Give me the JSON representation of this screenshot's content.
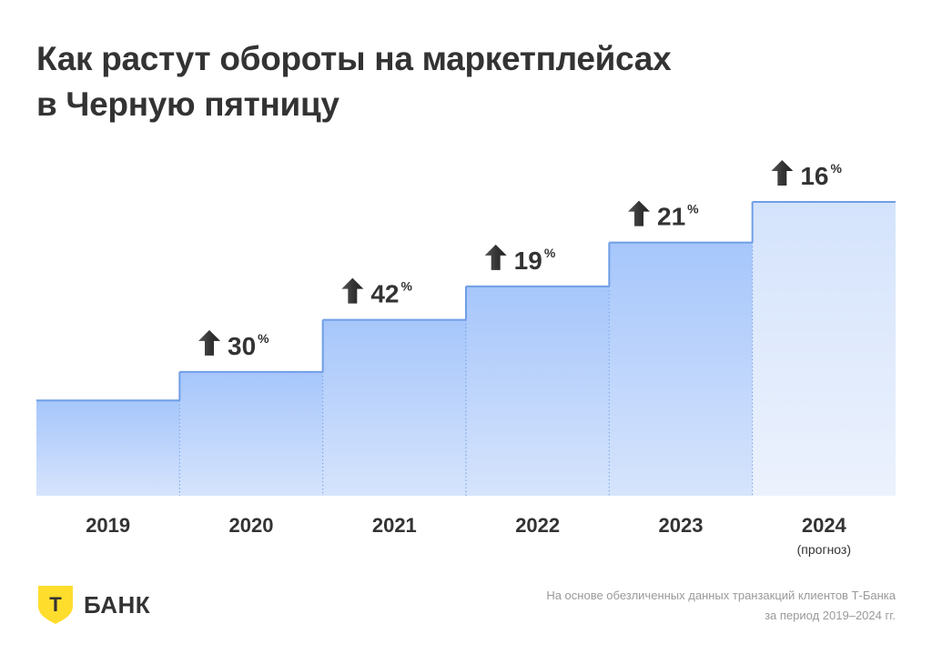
{
  "header": {
    "title_line1": "Как растут обороты на маркетплейсах",
    "title_line2": "в Черную пятницу"
  },
  "chart_data": {
    "type": "bar",
    "categories": [
      "2019",
      "2020",
      "2021",
      "2022",
      "2023",
      "2024"
    ],
    "category_notes": [
      "",
      "",
      "",
      "",
      "",
      "(прогноз)"
    ],
    "growth_labels": [
      "",
      "30",
      "42",
      "19",
      "21",
      "16"
    ],
    "growth_unit": "%",
    "values": [
      100,
      130,
      184.6,
      219.7,
      265.8,
      308.4
    ],
    "forecast_category": "2024",
    "colors": {
      "bar_top": "#a6c6fb",
      "bar_bottom": "#d6e4fc",
      "forecast_top": "#d4e3fc",
      "forecast_bottom": "#ecf2fd",
      "outline": "#6f9ee6",
      "arrow": "#333333"
    }
  },
  "footer": {
    "brand": "БАНК",
    "logo_letter": "Т",
    "logo_color": "#ffdd2d",
    "note_line1": "На основе обезличенных данных транзакций клиентов Т-Банка",
    "note_line2": "за период 2019–2024 гг."
  }
}
